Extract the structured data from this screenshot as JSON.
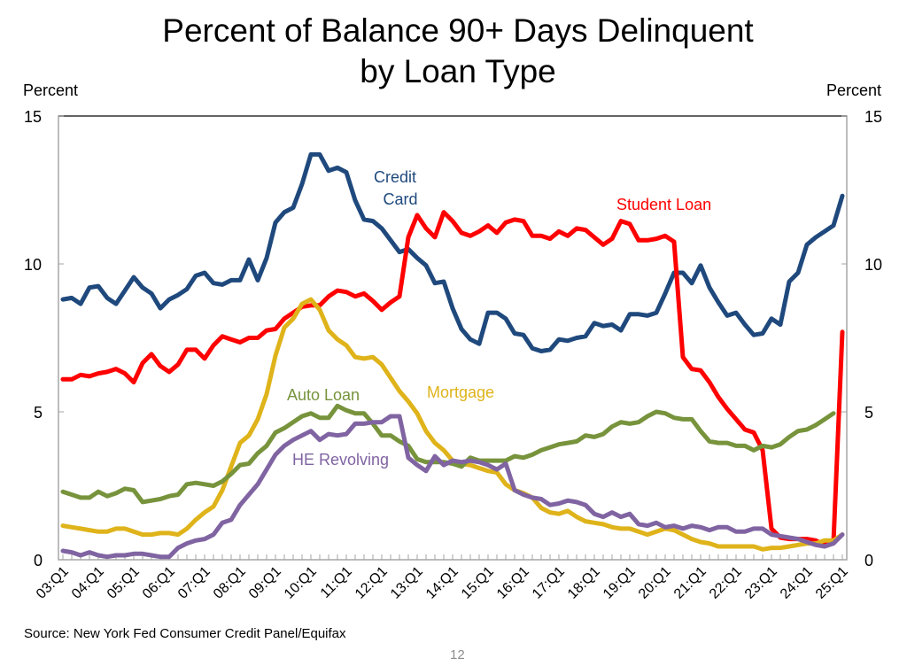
{
  "chart_data": {
    "type": "line",
    "title": "Percent of Balance 90+ Days Delinquent",
    "subtitle": "by Loan Type",
    "ylabel_left": "Percent",
    "ylabel_right": "Percent",
    "xlabel": "",
    "ylim": [
      0,
      15
    ],
    "yticks": [
      0,
      5,
      10,
      15
    ],
    "grid": false,
    "legend": "inline labels",
    "source": "Source: New York Fed Consumer Credit Panel/Equifax",
    "page_number": "12",
    "x_tick_labels": [
      "03:Q1",
      "04:Q1",
      "05:Q1",
      "06:Q1",
      "07:Q1",
      "08:Q1",
      "09:Q1",
      "10:Q1",
      "11:Q1",
      "12:Q1",
      "13:Q1",
      "14:Q1",
      "15:Q1",
      "16:Q1",
      "17:Q1",
      "18:Q1",
      "19:Q1",
      "20:Q1",
      "21:Q1",
      "22:Q1",
      "23:Q1",
      "24:Q1",
      "25:Q1"
    ],
    "x_start": "03:Q1",
    "x_end": "25:Q1",
    "quarters_count": 89,
    "series": [
      {
        "name": "Credit Card",
        "label": "Credit\nCard",
        "color": "#1f497d",
        "values": [
          8.8,
          8.85,
          8.65,
          9.2,
          9.25,
          8.85,
          8.65,
          9.1,
          9.55,
          9.2,
          9.0,
          8.5,
          8.8,
          8.95,
          9.15,
          9.6,
          9.7,
          9.35,
          9.3,
          9.45,
          9.45,
          10.15,
          9.45,
          10.2,
          11.4,
          11.75,
          11.9,
          12.7,
          13.7,
          13.7,
          13.15,
          13.25,
          13.1,
          12.15,
          11.5,
          11.45,
          11.2,
          10.8,
          10.4,
          10.5,
          10.2,
          9.95,
          9.35,
          9.4,
          8.5,
          7.8,
          7.45,
          7.3,
          8.35,
          8.35,
          8.15,
          7.65,
          7.6,
          7.15,
          7.05,
          7.1,
          7.45,
          7.4,
          7.5,
          7.55,
          8.0,
          7.9,
          7.95,
          7.75,
          8.3,
          8.3,
          8.25,
          8.35,
          9.0,
          9.7,
          9.7,
          9.35,
          9.95,
          9.2,
          8.7,
          8.25,
          8.35,
          7.95,
          7.6,
          7.65,
          8.15,
          7.95,
          9.4,
          9.7,
          10.65,
          10.9,
          11.1,
          11.3,
          12.3
        ]
      },
      {
        "name": "Student Loan",
        "label": "Student Loan",
        "color": "#ff0000",
        "values": [
          6.1,
          6.1,
          6.25,
          6.2,
          6.3,
          6.35,
          6.45,
          6.3,
          6.0,
          6.65,
          6.95,
          6.55,
          6.35,
          6.6,
          7.1,
          7.1,
          6.8,
          7.25,
          7.55,
          7.45,
          7.35,
          7.5,
          7.5,
          7.75,
          7.8,
          8.15,
          8.35,
          8.55,
          8.6,
          8.6,
          8.9,
          9.1,
          9.05,
          8.9,
          9.0,
          8.75,
          8.45,
          8.7,
          8.9,
          10.9,
          11.65,
          11.2,
          10.9,
          11.75,
          11.45,
          11.05,
          10.95,
          11.1,
          11.3,
          11.05,
          11.4,
          11.5,
          11.45,
          10.95,
          10.95,
          10.85,
          11.1,
          10.95,
          11.2,
          11.15,
          10.9,
          10.65,
          10.85,
          11.45,
          11.35,
          10.8,
          10.8,
          10.85,
          10.95,
          10.75,
          6.85,
          6.45,
          6.4,
          6.0,
          5.5,
          5.1,
          4.75,
          4.4,
          4.3,
          3.7,
          1.05,
          0.75,
          0.7,
          0.7,
          0.7,
          0.65,
          0.5,
          0.6,
          7.7
        ]
      },
      {
        "name": "Mortgage",
        "label": "Mortgage",
        "color": "#dfb31a",
        "values": [
          1.15,
          1.1,
          1.05,
          1.0,
          0.95,
          0.95,
          1.05,
          1.05,
          0.95,
          0.85,
          0.85,
          0.9,
          0.9,
          0.85,
          1.05,
          1.35,
          1.6,
          1.8,
          2.35,
          3.15,
          3.95,
          4.2,
          4.75,
          5.6,
          6.9,
          7.85,
          8.15,
          8.65,
          8.8,
          8.45,
          7.75,
          7.45,
          7.25,
          6.85,
          6.8,
          6.85,
          6.6,
          6.15,
          5.7,
          5.35,
          4.95,
          4.35,
          3.95,
          3.7,
          3.35,
          3.25,
          3.2,
          3.1,
          3.0,
          2.95,
          2.55,
          2.35,
          2.25,
          2.1,
          1.75,
          1.6,
          1.55,
          1.65,
          1.45,
          1.3,
          1.25,
          1.2,
          1.1,
          1.05,
          1.05,
          0.95,
          0.85,
          0.95,
          1.05,
          1.0,
          0.85,
          0.7,
          0.6,
          0.55,
          0.45,
          0.45,
          0.45,
          0.45,
          0.45,
          0.35,
          0.4,
          0.4,
          0.45,
          0.5,
          0.55,
          0.55,
          0.65,
          0.65,
          0.85
        ]
      },
      {
        "name": "Auto Loan",
        "label": "Auto Loan",
        "color": "#77933c",
        "values": [
          2.3,
          2.2,
          2.1,
          2.1,
          2.3,
          2.15,
          2.25,
          2.4,
          2.35,
          1.95,
          2.0,
          2.05,
          2.15,
          2.2,
          2.55,
          2.6,
          2.55,
          2.5,
          2.65,
          2.9,
          3.2,
          3.25,
          3.6,
          3.85,
          4.3,
          4.45,
          4.65,
          4.85,
          4.95,
          4.8,
          4.8,
          5.2,
          5.05,
          4.95,
          4.95,
          4.6,
          4.2,
          4.2,
          4.0,
          3.85,
          3.4,
          3.3,
          3.3,
          3.3,
          3.25,
          3.15,
          3.45,
          3.35,
          3.35,
          3.35,
          3.35,
          3.5,
          3.45,
          3.55,
          3.7,
          3.8,
          3.9,
          3.95,
          4.0,
          4.2,
          4.15,
          4.25,
          4.5,
          4.65,
          4.6,
          4.65,
          4.85,
          5.0,
          4.95,
          4.8,
          4.75,
          4.75,
          4.35,
          4.0,
          3.95,
          3.95,
          3.85,
          3.85,
          3.7,
          3.85,
          3.8,
          3.9,
          4.15,
          4.35,
          4.4,
          4.55,
          4.75,
          4.95
        ]
      },
      {
        "name": "HE Revolving",
        "label": "HE Revolving",
        "color": "#8064a2",
        "values": [
          0.3,
          0.25,
          0.15,
          0.25,
          0.15,
          0.1,
          0.15,
          0.15,
          0.2,
          0.2,
          0.15,
          0.1,
          0.1,
          0.4,
          0.55,
          0.65,
          0.7,
          0.85,
          1.25,
          1.35,
          1.85,
          2.2,
          2.55,
          3.05,
          3.55,
          3.85,
          4.05,
          4.2,
          4.35,
          4.05,
          4.25,
          4.2,
          4.25,
          4.6,
          4.6,
          4.65,
          4.65,
          4.85,
          4.85,
          3.45,
          3.2,
          3.0,
          3.5,
          3.2,
          3.35,
          3.3,
          3.35,
          3.3,
          3.2,
          3.05,
          3.25,
          2.35,
          2.2,
          2.1,
          2.05,
          1.85,
          1.9,
          2.0,
          1.95,
          1.85,
          1.55,
          1.45,
          1.6,
          1.45,
          1.55,
          1.2,
          1.15,
          1.25,
          1.1,
          1.15,
          1.05,
          1.15,
          1.1,
          1.0,
          1.1,
          1.1,
          0.95,
          0.95,
          1.05,
          1.05,
          0.85,
          0.8,
          0.75,
          0.7,
          0.6,
          0.5,
          0.45,
          0.55,
          0.85
        ]
      }
    ]
  },
  "labels": {
    "title_line1": "Percent of Balance 90+ Days Delinquent",
    "title_line2": "by Loan Type",
    "left_unit": "Percent",
    "right_unit": "Percent",
    "source": "Source: New York Fed Consumer Credit Panel/Equifax",
    "page_number": "12"
  }
}
